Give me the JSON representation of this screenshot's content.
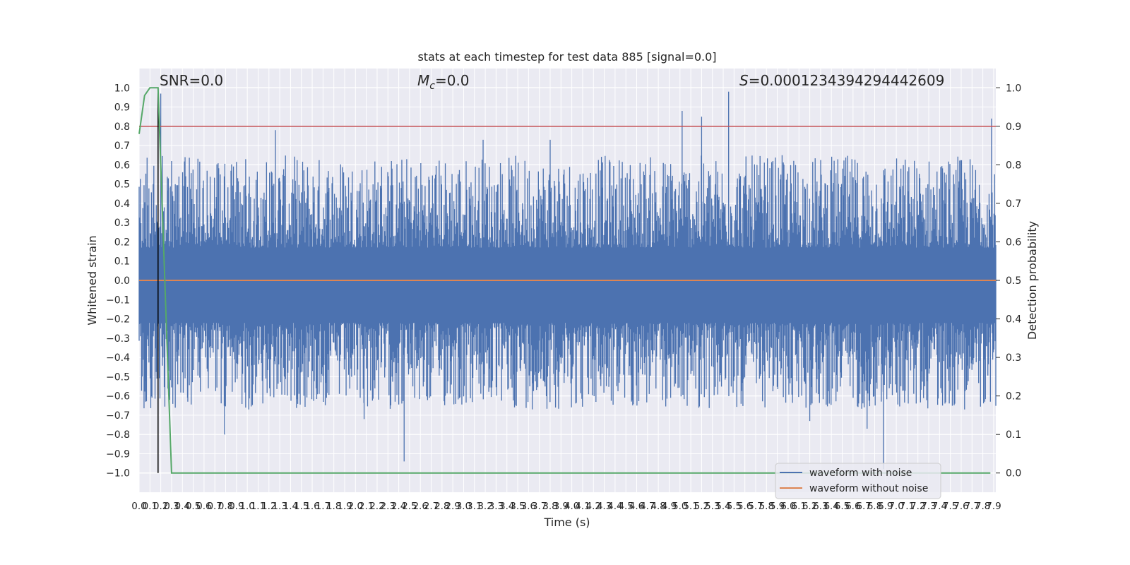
{
  "chart_data": {
    "type": "line",
    "title": "stats at each timestep for test data 885 [signal=0.0]",
    "xlabel": "Time (s)",
    "ylabel_left": "Whitened strain",
    "ylabel_right": "Detection probability",
    "annotations": {
      "snr": "SNR=0.0",
      "mc_symbol": "M",
      "mc_sub": "c",
      "mc_value": "=0.0",
      "s_symbol": "S",
      "s_value": "=0.0001234394294442609"
    },
    "xlim": [
      0.0,
      7.92
    ],
    "ylim_left": [
      -1.1,
      1.1
    ],
    "ylim_right": [
      -0.05,
      1.05
    ],
    "xticks": [
      "0.0",
      "0.1",
      "0.2",
      "0.3",
      "0.4",
      "0.5",
      "0.6",
      "0.7",
      "0.8",
      "0.9",
      "1.0",
      "1.1",
      "1.2",
      "1.3",
      "1.4",
      "1.5",
      "1.6",
      "1.7",
      "1.8",
      "1.9",
      "2.0",
      "2.1",
      "2.2",
      "2.3",
      "2.4",
      "2.5",
      "2.6",
      "2.7",
      "2.8",
      "2.9",
      "3.0",
      "3.1",
      "3.2",
      "3.3",
      "3.4",
      "3.5",
      "3.6",
      "3.7",
      "3.8",
      "3.9",
      "4.0",
      "4.1",
      "4.2",
      "4.3",
      "4.4",
      "4.5",
      "4.6",
      "4.7",
      "4.8",
      "4.9",
      "5.0",
      "5.1",
      "5.2",
      "5.3",
      "5.4",
      "5.5",
      "5.6",
      "5.7",
      "5.8",
      "5.9",
      "6.0",
      "6.1",
      "6.2",
      "6.3",
      "6.4",
      "6.5",
      "6.6",
      "6.7",
      "6.8",
      "6.9",
      "7.0",
      "7.1",
      "7.2",
      "7.3",
      "7.4",
      "7.5",
      "7.6",
      "7.7",
      "7.8",
      "7.9"
    ],
    "yticks_left": [
      "1.0",
      "0.9",
      "0.8",
      "0.7",
      "0.6",
      "0.5",
      "0.4",
      "0.3",
      "0.2",
      "0.1",
      "0.0",
      "−0.1",
      "−0.2",
      "−0.3",
      "−0.4",
      "−0.5",
      "−0.6",
      "−0.7",
      "−0.8",
      "−0.9",
      "−1.0"
    ],
    "yticks_right": [
      "1.0",
      "0.9",
      "0.8",
      "0.7",
      "0.6",
      "0.5",
      "0.4",
      "0.3",
      "0.2",
      "0.1",
      "0.0"
    ],
    "series": [
      {
        "name": "waveform with noise",
        "color": "#4c72b0",
        "kind": "noise",
        "band_low": -0.22,
        "band_high": 0.17
      },
      {
        "name": "waveform without noise",
        "color": "#dd8452",
        "y_const": 0.0
      },
      {
        "color": "#55a868",
        "axis": "right",
        "x": [
          0.0,
          0.05,
          0.1,
          0.15,
          0.175,
          0.3,
          8.0
        ],
        "y": [
          0.88,
          0.98,
          1.0,
          1.0,
          1.0,
          0.0,
          0.0
        ]
      }
    ],
    "threshold": {
      "value": 0.9,
      "axis": "right",
      "color": "#c44e52"
    },
    "marker_line": {
      "x": 0.175,
      "color": "#000000"
    },
    "spikes": [
      {
        "x": 0.05,
        "y": -0.56
      },
      {
        "x": 0.06,
        "y": -0.63
      },
      {
        "x": 0.2,
        "y": 0.97
      },
      {
        "x": 0.27,
        "y": 0.53
      },
      {
        "x": 0.45,
        "y": -0.63
      },
      {
        "x": 0.75,
        "y": 0.55
      },
      {
        "x": 0.79,
        "y": -0.8
      },
      {
        "x": 1.26,
        "y": 0.78
      },
      {
        "x": 2.08,
        "y": -0.72
      },
      {
        "x": 2.45,
        "y": -0.94
      },
      {
        "x": 3.18,
        "y": 0.73
      },
      {
        "x": 3.8,
        "y": 0.73
      },
      {
        "x": 5.02,
        "y": 0.88
      },
      {
        "x": 5.2,
        "y": 0.85
      },
      {
        "x": 5.45,
        "y": 0.98
      },
      {
        "x": 6.2,
        "y": -0.73
      },
      {
        "x": 6.73,
        "y": -0.77
      },
      {
        "x": 6.88,
        "y": -0.98
      },
      {
        "x": 7.88,
        "y": 0.84
      },
      {
        "x": 7.87,
        "y": -0.63
      }
    ]
  }
}
